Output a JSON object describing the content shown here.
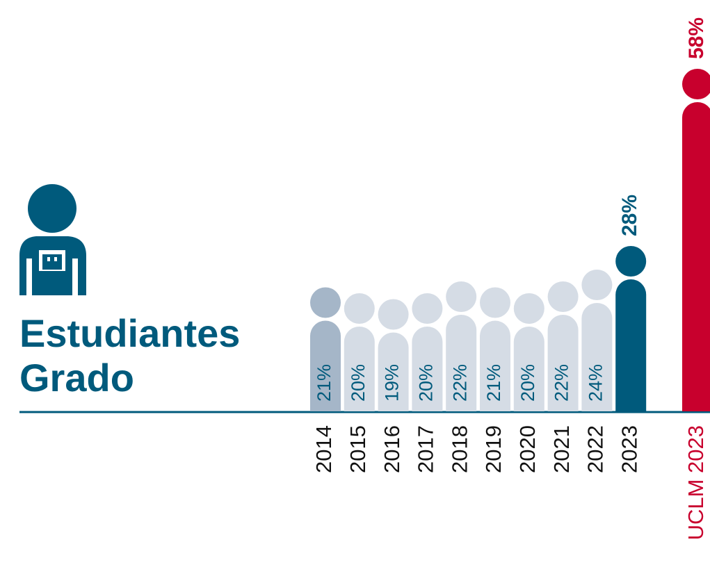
{
  "chart_data": {
    "type": "pictogram",
    "title": "Estudiantes Grado",
    "categories": [
      "2014",
      "2015",
      "2016",
      "2017",
      "2018",
      "2019",
      "2020",
      "2021",
      "2022",
      "2023",
      "UCLM 2023"
    ],
    "values": [
      21,
      20,
      19,
      20,
      22,
      21,
      20,
      22,
      24,
      28,
      58
    ],
    "value_labels": [
      "21%",
      "20%",
      "19%",
      "20%",
      "22%",
      "21%",
      "20%",
      "22%",
      "24%",
      "28%",
      "58%"
    ],
    "colors": [
      "#a5b6c8",
      "#d5dce5",
      "#d5dce5",
      "#d5dce5",
      "#d5dce5",
      "#d5dce5",
      "#d5dce5",
      "#d5dce5",
      "#d5dce5",
      "#005a7c",
      "#c8002d"
    ],
    "label_outside": [
      false,
      false,
      false,
      false,
      false,
      false,
      false,
      false,
      false,
      true,
      true
    ],
    "category_colors": [
      "#111111",
      "#111111",
      "#111111",
      "#111111",
      "#111111",
      "#111111",
      "#111111",
      "#111111",
      "#111111",
      "#111111",
      "#c8002d"
    ]
  }
}
